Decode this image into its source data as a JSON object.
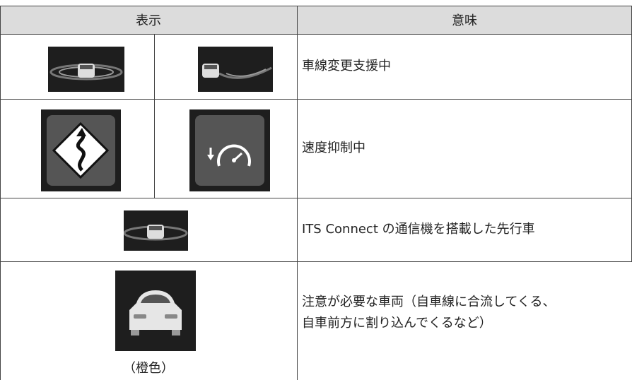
{
  "table": {
    "header": [
      "表示",
      "意味"
    ],
    "rows": [
      {
        "meaning": [
          "車線変更支援中"
        ]
      },
      {
        "meaning": [
          "速度抑制中"
        ]
      },
      {
        "meaning": [
          "ITS Connect の通信機を搭載した先行車"
        ]
      },
      {
        "caption": "（橙色）",
        "meaning": [
          "注意が必要な車両（自車線に合流してくる、",
          "自車前方に割り込んでくるなど）"
        ]
      }
    ]
  }
}
